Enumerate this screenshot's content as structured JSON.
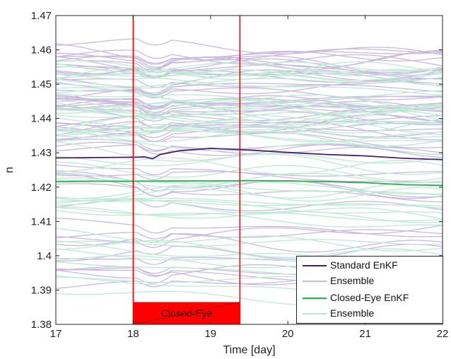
{
  "chart_data": {
    "type": "line",
    "xlabel": "Time [day]",
    "ylabel": "n",
    "xlim": [
      17,
      22
    ],
    "ylim": [
      1.38,
      1.47
    ],
    "xticks": [
      "17",
      "18",
      "19",
      "20",
      "21",
      "22"
    ],
    "yticks": [
      "1.38",
      "1.39",
      "1.4",
      "1.41",
      "1.42",
      "1.43",
      "1.44",
      "1.45",
      "1.46",
      "1.47"
    ],
    "grid": false,
    "legend_position": "bottom-right",
    "closed_eye_interval": [
      18.0,
      19.38
    ],
    "closed_eye_label": "Closed-Eye",
    "series": [
      {
        "name": "Standard EnKF",
        "color": "#4b1d6e",
        "x": [
          17.0,
          17.5,
          18.0,
          18.15,
          18.25,
          18.35,
          18.6,
          19.0,
          19.2,
          19.5,
          20.0,
          20.5,
          21.0,
          21.5,
          22.0
        ],
        "y": [
          1.4285,
          1.4286,
          1.4287,
          1.4288,
          1.4283,
          1.4295,
          1.4306,
          1.4313,
          1.4311,
          1.4308,
          1.4301,
          1.4295,
          1.4291,
          1.4284,
          1.428
        ]
      },
      {
        "name": "Closed-Eye EnKF",
        "color": "#22b14c",
        "x": [
          17.0,
          17.5,
          18.0,
          18.5,
          19.0,
          19.5,
          20.0,
          20.5,
          21.0,
          21.5,
          22.0
        ],
        "y": [
          1.4216,
          1.4217,
          1.4217,
          1.4218,
          1.4218,
          1.4219,
          1.4218,
          1.4216,
          1.4213,
          1.4207,
          1.4205
        ]
      }
    ],
    "ensembles": [
      {
        "name": "Ensemble",
        "color": "#c9b9df",
        "members": 55,
        "y_start_range": [
          1.391,
          1.463
        ]
      },
      {
        "name": "Ensemble",
        "color": "#bfe9d5",
        "members": 55,
        "y_start_range": [
          1.39,
          1.456
        ]
      }
    ]
  }
}
